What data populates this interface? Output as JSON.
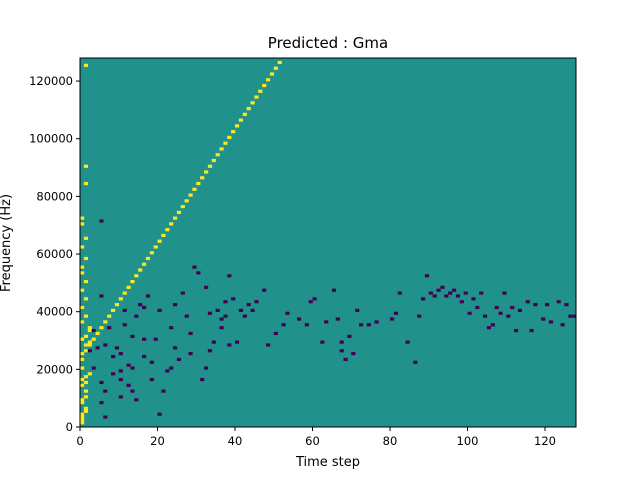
{
  "chart_data": {
    "type": "heatmap",
    "title": "Predicted : Gma",
    "xlabel": "Time step",
    "ylabel": "Frequency (Hz)",
    "xlim": [
      0,
      128
    ],
    "ylim": [
      0,
      128000
    ],
    "grid": false,
    "x_ticks": [
      0,
      20,
      40,
      60,
      80,
      100,
      120
    ],
    "y_ticks": [
      0,
      20000,
      40000,
      60000,
      80000,
      100000,
      120000
    ],
    "n_time_steps": 128,
    "n_freq_bins": 128,
    "bin_height_hz": 1000,
    "value_levels": {
      "low": -1,
      "background": 0,
      "high": 1
    },
    "colors": {
      "low": "#440154",
      "background": "#21918c",
      "high": "#fde725"
    },
    "cells": [
      [
        0,
        1,
        1
      ],
      [
        0,
        2,
        1
      ],
      [
        0,
        3,
        1
      ],
      [
        0,
        4,
        1
      ],
      [
        1,
        5,
        1
      ],
      [
        1,
        6,
        1
      ],
      [
        0,
        8,
        1
      ],
      [
        0,
        9,
        1
      ],
      [
        1,
        10,
        1
      ],
      [
        1,
        12,
        1
      ],
      [
        0,
        14,
        1
      ],
      [
        1,
        15,
        1
      ],
      [
        0,
        16,
        1
      ],
      [
        1,
        17,
        1
      ],
      [
        2,
        18,
        1
      ],
      [
        0,
        20,
        1
      ],
      [
        0,
        23,
        1
      ],
      [
        0,
        25,
        1
      ],
      [
        1,
        26,
        1
      ],
      [
        1,
        28,
        1
      ],
      [
        2,
        29,
        1
      ],
      [
        0,
        30,
        1
      ],
      [
        1,
        31,
        1
      ],
      [
        2,
        33,
        1
      ],
      [
        2,
        34,
        1
      ],
      [
        0,
        36,
        1
      ],
      [
        1,
        38,
        1
      ],
      [
        0,
        41,
        1
      ],
      [
        1,
        44,
        1
      ],
      [
        0,
        47,
        1
      ],
      [
        1,
        50,
        1
      ],
      [
        0,
        53,
        1
      ],
      [
        0,
        55,
        1
      ],
      [
        1,
        58,
        1
      ],
      [
        0,
        62,
        1
      ],
      [
        1,
        65,
        1
      ],
      [
        0,
        70,
        1
      ],
      [
        0,
        72,
        1
      ],
      [
        1,
        84,
        1
      ],
      [
        1,
        90,
        1
      ],
      [
        1,
        125,
        1
      ],
      [
        2,
        26,
        -1
      ],
      [
        3,
        20,
        -1
      ],
      [
        3,
        33,
        -1
      ],
      [
        4,
        27,
        -1
      ],
      [
        5,
        8,
        -1
      ],
      [
        5,
        15,
        -1
      ],
      [
        5,
        45,
        -1
      ],
      [
        5,
        71,
        -1
      ],
      [
        6,
        3,
        -1
      ],
      [
        6,
        12,
        -1
      ],
      [
        6,
        28,
        -1
      ],
      [
        7,
        34,
        -1
      ],
      [
        8,
        18,
        -1
      ],
      [
        8,
        24,
        -1
      ],
      [
        9,
        27,
        -1
      ],
      [
        10,
        10,
        -1
      ],
      [
        10,
        16,
        -1
      ],
      [
        10,
        19,
        -1
      ],
      [
        10,
        25,
        -1
      ],
      [
        11,
        40,
        -1
      ],
      [
        11,
        35,
        -1
      ],
      [
        12,
        14,
        -1
      ],
      [
        12,
        21,
        -1
      ],
      [
        13,
        12,
        -1
      ],
      [
        13,
        20,
        -1
      ],
      [
        13,
        31,
        -1
      ],
      [
        14,
        9,
        -1
      ],
      [
        14,
        38,
        -1
      ],
      [
        15,
        42,
        -1
      ],
      [
        16,
        24,
        -1
      ],
      [
        16,
        30,
        -1
      ],
      [
        16,
        41,
        -1
      ],
      [
        17,
        45,
        -1
      ],
      [
        18,
        16,
        -1
      ],
      [
        18,
        22,
        -1
      ],
      [
        19,
        30,
        -1
      ],
      [
        20,
        4,
        -1
      ],
      [
        20,
        40,
        -1
      ],
      [
        21,
        12,
        -1
      ],
      [
        22,
        19,
        -1
      ],
      [
        23,
        20,
        -1
      ],
      [
        23,
        34,
        -1
      ],
      [
        24,
        27,
        -1
      ],
      [
        24,
        42,
        -1
      ],
      [
        25,
        23,
        -1
      ],
      [
        26,
        46,
        -1
      ],
      [
        27,
        38,
        -1
      ],
      [
        28,
        25,
        -1
      ],
      [
        28,
        32,
        -1
      ],
      [
        29,
        55,
        -1
      ],
      [
        30,
        53,
        -1
      ],
      [
        31,
        16,
        -1
      ],
      [
        32,
        20,
        -1
      ],
      [
        32,
        48,
        -1
      ],
      [
        33,
        26,
        -1
      ],
      [
        33,
        39,
        -1
      ],
      [
        34,
        29,
        -1
      ],
      [
        35,
        40,
        -1
      ],
      [
        36,
        34,
        -1
      ],
      [
        36,
        37,
        -1
      ],
      [
        37,
        38,
        -1
      ],
      [
        37,
        43,
        -1
      ],
      [
        38,
        28,
        -1
      ],
      [
        38,
        52,
        -1
      ],
      [
        39,
        44,
        -1
      ],
      [
        40,
        29,
        -1
      ],
      [
        41,
        40,
        -1
      ],
      [
        42,
        38,
        -1
      ],
      [
        43,
        42,
        -1
      ],
      [
        44,
        40,
        -1
      ],
      [
        45,
        43,
        -1
      ],
      [
        47,
        47,
        -1
      ],
      [
        48,
        28,
        -1
      ],
      [
        50,
        32,
        -1
      ],
      [
        52,
        35,
        -1
      ],
      [
        53,
        39,
        -1
      ],
      [
        56,
        37,
        -1
      ],
      [
        58,
        35,
        -1
      ],
      [
        59,
        43,
        -1
      ],
      [
        60,
        44,
        -1
      ],
      [
        62,
        29,
        -1
      ],
      [
        63,
        36,
        -1
      ],
      [
        65,
        47,
        -1
      ],
      [
        66,
        37,
        -1
      ],
      [
        67,
        26,
        -1
      ],
      [
        67,
        29,
        -1
      ],
      [
        68,
        23,
        -1
      ],
      [
        69,
        31,
        -1
      ],
      [
        70,
        25,
        -1
      ],
      [
        71,
        40,
        -1
      ],
      [
        72,
        35,
        -1
      ],
      [
        74,
        35,
        -1
      ],
      [
        76,
        36,
        -1
      ],
      [
        80,
        37,
        -1
      ],
      [
        81,
        39,
        -1
      ],
      [
        82,
        46,
        -1
      ],
      [
        84,
        29,
        -1
      ],
      [
        86,
        22,
        -1
      ],
      [
        87,
        38,
        -1
      ],
      [
        88,
        44,
        -1
      ],
      [
        89,
        52,
        -1
      ],
      [
        90,
        46,
        -1
      ],
      [
        91,
        45,
        -1
      ],
      [
        92,
        47,
        -1
      ],
      [
        93,
        48,
        -1
      ],
      [
        94,
        45,
        -1
      ],
      [
        95,
        46,
        -1
      ],
      [
        96,
        47,
        -1
      ],
      [
        97,
        45,
        -1
      ],
      [
        98,
        43,
        -1
      ],
      [
        99,
        46,
        -1
      ],
      [
        100,
        39,
        -1
      ],
      [
        101,
        44,
        -1
      ],
      [
        102,
        41,
        -1
      ],
      [
        103,
        46,
        -1
      ],
      [
        104,
        38,
        -1
      ],
      [
        105,
        34,
        -1
      ],
      [
        106,
        35,
        -1
      ],
      [
        107,
        41,
        -1
      ],
      [
        108,
        39,
        -1
      ],
      [
        109,
        46,
        -1
      ],
      [
        110,
        38,
        -1
      ],
      [
        111,
        41,
        -1
      ],
      [
        112,
        33,
        -1
      ],
      [
        113,
        40,
        -1
      ],
      [
        115,
        43,
        -1
      ],
      [
        116,
        33,
        -1
      ],
      [
        117,
        42,
        -1
      ],
      [
        119,
        37,
        -1
      ],
      [
        120,
        42,
        -1
      ],
      [
        121,
        36,
        -1
      ],
      [
        123,
        43,
        -1
      ],
      [
        124,
        35,
        -1
      ],
      [
        125,
        42,
        -1
      ],
      [
        126,
        38,
        -1
      ],
      [
        127,
        38,
        -1
      ],
      [
        2,
        28,
        1
      ],
      [
        3,
        30,
        1
      ],
      [
        4,
        32,
        1
      ],
      [
        5,
        34,
        1
      ],
      [
        6,
        36,
        1
      ],
      [
        7,
        38,
        1
      ],
      [
        8,
        40,
        1
      ],
      [
        9,
        42,
        1
      ],
      [
        10,
        44,
        1
      ],
      [
        11,
        46,
        1
      ],
      [
        12,
        48,
        1
      ],
      [
        13,
        50,
        1
      ],
      [
        14,
        52,
        1
      ],
      [
        15,
        54,
        1
      ],
      [
        16,
        56,
        1
      ],
      [
        17,
        58,
        1
      ],
      [
        18,
        60,
        1
      ],
      [
        19,
        62,
        1
      ],
      [
        20,
        64,
        1
      ],
      [
        21,
        66,
        1
      ],
      [
        22,
        68,
        1
      ],
      [
        23,
        70,
        1
      ],
      [
        24,
        72,
        1
      ],
      [
        25,
        74,
        1
      ],
      [
        26,
        76,
        1
      ],
      [
        27,
        78,
        1
      ],
      [
        28,
        80,
        1
      ],
      [
        29,
        82,
        1
      ],
      [
        30,
        84,
        1
      ],
      [
        31,
        86,
        1
      ],
      [
        32,
        88,
        1
      ],
      [
        33,
        90,
        1
      ],
      [
        34,
        92,
        1
      ],
      [
        35,
        94,
        1
      ],
      [
        36,
        96,
        1
      ],
      [
        37,
        98,
        1
      ],
      [
        38,
        100,
        1
      ],
      [
        39,
        102,
        1
      ],
      [
        40,
        104,
        1
      ],
      [
        41,
        106,
        1
      ],
      [
        42,
        108,
        1
      ],
      [
        43,
        110,
        1
      ],
      [
        44,
        112,
        1
      ],
      [
        45,
        114,
        1
      ],
      [
        46,
        116,
        1
      ],
      [
        47,
        118,
        1
      ],
      [
        48,
        120,
        1
      ],
      [
        49,
        122,
        1
      ],
      [
        50,
        124,
        1
      ],
      [
        51,
        126,
        1
      ]
    ]
  }
}
